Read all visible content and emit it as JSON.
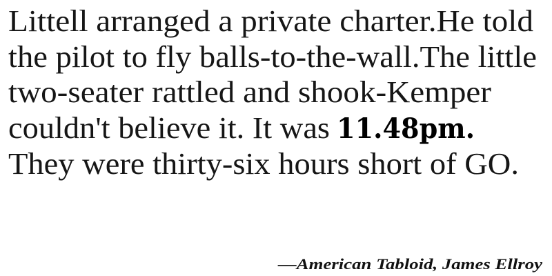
{
  "quote": {
    "lines": [
      "Littell arranged a private charter.He told",
      "the pilot to fly balls-to-the-wall.The little",
      "two-seater rattled and shook-Kemper",
      "couldn't believe it. It was",
      "They were thirty-six hours short of GO."
    ],
    "emphasis": "11.48pm."
  },
  "attribution": "—American Tabloid, James Ellroy"
}
